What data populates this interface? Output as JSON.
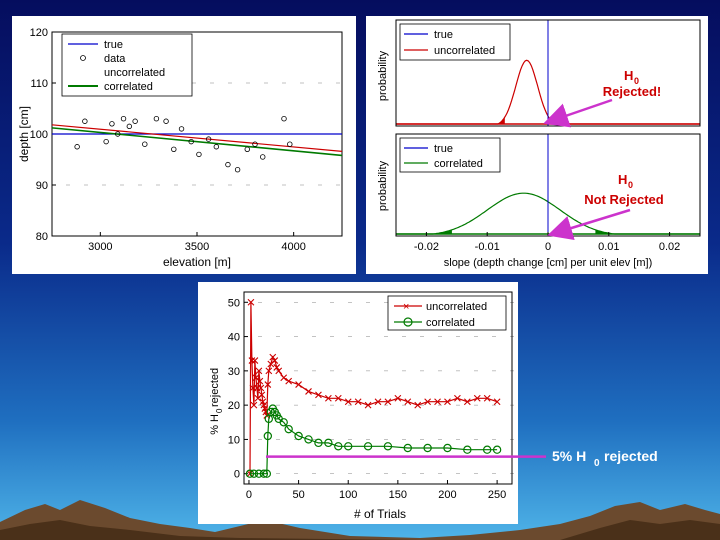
{
  "colors": {
    "true_line": "#0000cc",
    "uncorrelated": "#cc0000",
    "correlated": "#007a00",
    "highlight": "#cc33cc",
    "background_top": "#050d5e",
    "background_bottom": "#4fb4e8"
  },
  "chart_data": [
    {
      "id": "depth-elevation",
      "type": "scatter",
      "xlabel": "elevation [m]",
      "ylabel": "depth [cm]",
      "xlim": [
        2750,
        4250
      ],
      "ylim": [
        80,
        120
      ],
      "xticks": [
        "3000",
        "3500",
        "4000"
      ],
      "yticks": [
        "80",
        "90",
        "100",
        "110",
        "120"
      ],
      "legend": [
        "true",
        "data",
        "uncorrelated",
        "correlated"
      ],
      "legend_position": "top-left",
      "data_points": [
        [
          2880,
          97.5
        ],
        [
          2920,
          102.5
        ],
        [
          3030,
          98.5
        ],
        [
          3060,
          102
        ],
        [
          3090,
          100
        ],
        [
          3120,
          103
        ],
        [
          3150,
          101.5
        ],
        [
          3180,
          102.5
        ],
        [
          3230,
          98
        ],
        [
          3290,
          103
        ],
        [
          3340,
          102.5
        ],
        [
          3380,
          97
        ],
        [
          3420,
          101
        ],
        [
          3470,
          98.5
        ],
        [
          3510,
          96
        ],
        [
          3560,
          99
        ],
        [
          3600,
          97.5
        ],
        [
          3660,
          94
        ],
        [
          3710,
          93
        ],
        [
          3760,
          97
        ],
        [
          3800,
          98
        ],
        [
          3840,
          95.5
        ],
        [
          3950,
          103
        ],
        [
          3980,
          98
        ]
      ],
      "true_line": [
        [
          2750,
          100
        ],
        [
          4250,
          100
        ]
      ],
      "uncorrelated_line": [
        [
          2750,
          101.8
        ],
        [
          4250,
          96.6
        ]
      ],
      "correlated_line": [
        [
          2750,
          101.2
        ],
        [
          4250,
          95.8
        ]
      ]
    },
    {
      "id": "slope-uncorrelated",
      "type": "area",
      "ylabel": "probability",
      "xlim": [
        -0.025,
        0.025
      ],
      "legend": [
        "true",
        "uncorrelated"
      ],
      "legend_position": "top-left",
      "true_slope": 0,
      "curve_mean": -0.0035,
      "curve_sd": 0.0018,
      "critical_values": [
        -0.0071,
        0.0001
      ],
      "annotation": "Rejected!"
    },
    {
      "id": "slope-correlated",
      "type": "area",
      "xlabel": "slope (depth change [cm] per unit elev [m])",
      "ylabel": "probability",
      "xlim": [
        -0.025,
        0.025
      ],
      "xticks": [
        "-0.02",
        "-0.01",
        "0",
        "0.01",
        "0.02"
      ],
      "legend": [
        "true",
        "correlated"
      ],
      "legend_position": "top-left",
      "true_slope": 0,
      "curve_mean": -0.004,
      "curve_sd": 0.006,
      "critical_values": [
        -0.0158,
        0.0078
      ],
      "annotation": "Not Rejected"
    },
    {
      "id": "percent-rejected",
      "type": "line",
      "xlabel": "# of Trials",
      "ylabel_main": "% H",
      "ylabel_sub": "0",
      "ylabel_suffix": " rejected",
      "xlim": [
        -5,
        265
      ],
      "ylim": [
        -3,
        53
      ],
      "xticks": [
        "0",
        "50",
        "100",
        "150",
        "200",
        "250"
      ],
      "yticks": [
        "0",
        "10",
        "20",
        "30",
        "40",
        "50"
      ],
      "legend": [
        "uncorrelated",
        "correlated"
      ],
      "legend_position": "top-right",
      "reference_level": 5,
      "uncorrelated": {
        "x": [
          1,
          2,
          3,
          4,
          5,
          6,
          7,
          8,
          9,
          10,
          11,
          12,
          13,
          14,
          15,
          16,
          17,
          18,
          19,
          20,
          22,
          24,
          26,
          28,
          30,
          35,
          40,
          50,
          60,
          70,
          80,
          90,
          100,
          110,
          120,
          130,
          140,
          150,
          160,
          170,
          180,
          190,
          200,
          210,
          220,
          230,
          240,
          250
        ],
        "y": [
          0,
          50,
          33,
          25,
          20,
          33,
          28,
          25,
          22,
          30,
          27,
          25,
          23,
          21,
          20,
          19,
          18,
          17,
          26,
          30,
          32,
          34,
          33,
          31,
          30,
          28,
          27,
          26,
          24,
          23,
          22,
          22,
          21,
          21,
          20,
          21,
          21,
          22,
          21,
          20,
          21,
          21,
          21,
          22,
          21,
          22,
          22,
          21
        ]
      },
      "correlated": {
        "x": [
          1,
          5,
          10,
          15,
          18,
          19,
          20,
          22,
          24,
          26,
          28,
          30,
          35,
          40,
          50,
          60,
          70,
          80,
          90,
          100,
          120,
          140,
          160,
          180,
          200,
          220,
          240,
          250
        ],
        "y": [
          0,
          0,
          0,
          0,
          0,
          11,
          16,
          18,
          19,
          18,
          17,
          16,
          15,
          13,
          11,
          10,
          9,
          9,
          8,
          8,
          8,
          8,
          7.5,
          7.5,
          7.5,
          7,
          7,
          7
        ]
      },
      "annotation": "5% H",
      "annotation_sub": "0",
      "annotation_suffix": " rejected"
    }
  ],
  "annotations": {
    "h_letter": "H",
    "h_sub": "0",
    "rejected": "Rejected!",
    "not_rejected": "Not Rejected"
  }
}
